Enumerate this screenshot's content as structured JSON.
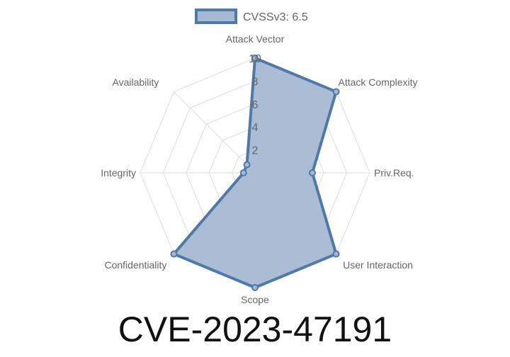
{
  "chart_data": {
    "type": "radar",
    "title": "CVE-2023-47191",
    "axes": [
      "Attack Vector",
      "Attack Complexity",
      "Priv.Req.",
      "User Interaction",
      "Scope",
      "Confidentiality",
      "Integrity",
      "Availability"
    ],
    "series": [
      {
        "name": "CVSSv3: 6.5",
        "values": [
          10,
          10,
          5,
          10,
          10,
          10,
          1,
          1
        ]
      }
    ],
    "r_range": [
      0,
      10
    ],
    "ticks": [
      "2",
      "4",
      "6",
      "8",
      "10"
    ],
    "grid": true,
    "legend": "top",
    "colors": {
      "line": "#4f79a8",
      "fill": "#a5b9d3",
      "grid": "#dddddd"
    }
  }
}
